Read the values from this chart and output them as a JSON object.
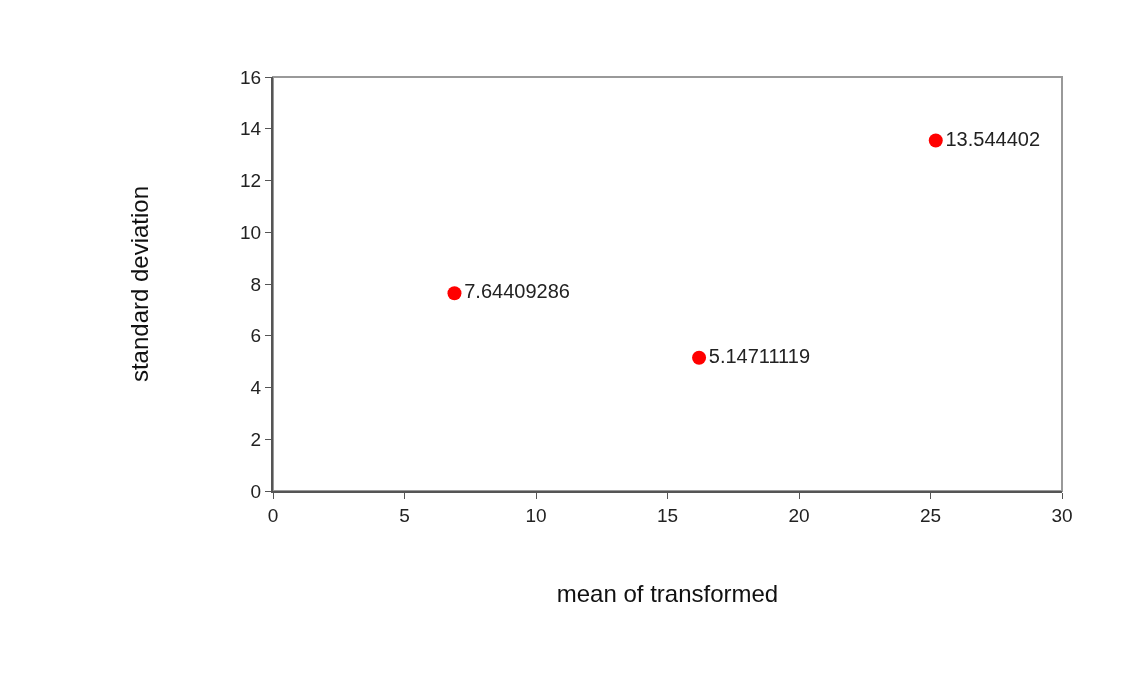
{
  "chart_data": {
    "type": "scatter",
    "xlabel": "mean of transformed",
    "ylabel": "standard deviation",
    "x": [
      6.9,
      16.2,
      25.2
    ],
    "series": [
      {
        "color": "#ff0000",
        "values": [
          7.64409286,
          5.14711119,
          13.544402
        ],
        "value_labels": [
          "7.64409286",
          "5.14711119",
          "13.544402"
        ]
      }
    ],
    "xlim": [
      0,
      30
    ],
    "xticks": [
      0,
      5,
      10,
      15,
      20,
      25,
      30
    ],
    "ylim": [
      0,
      16
    ],
    "yticks": [
      0,
      2,
      4,
      6,
      8,
      10,
      12,
      14,
      16
    ],
    "grid": false,
    "legend": false,
    "marker": "circle"
  }
}
